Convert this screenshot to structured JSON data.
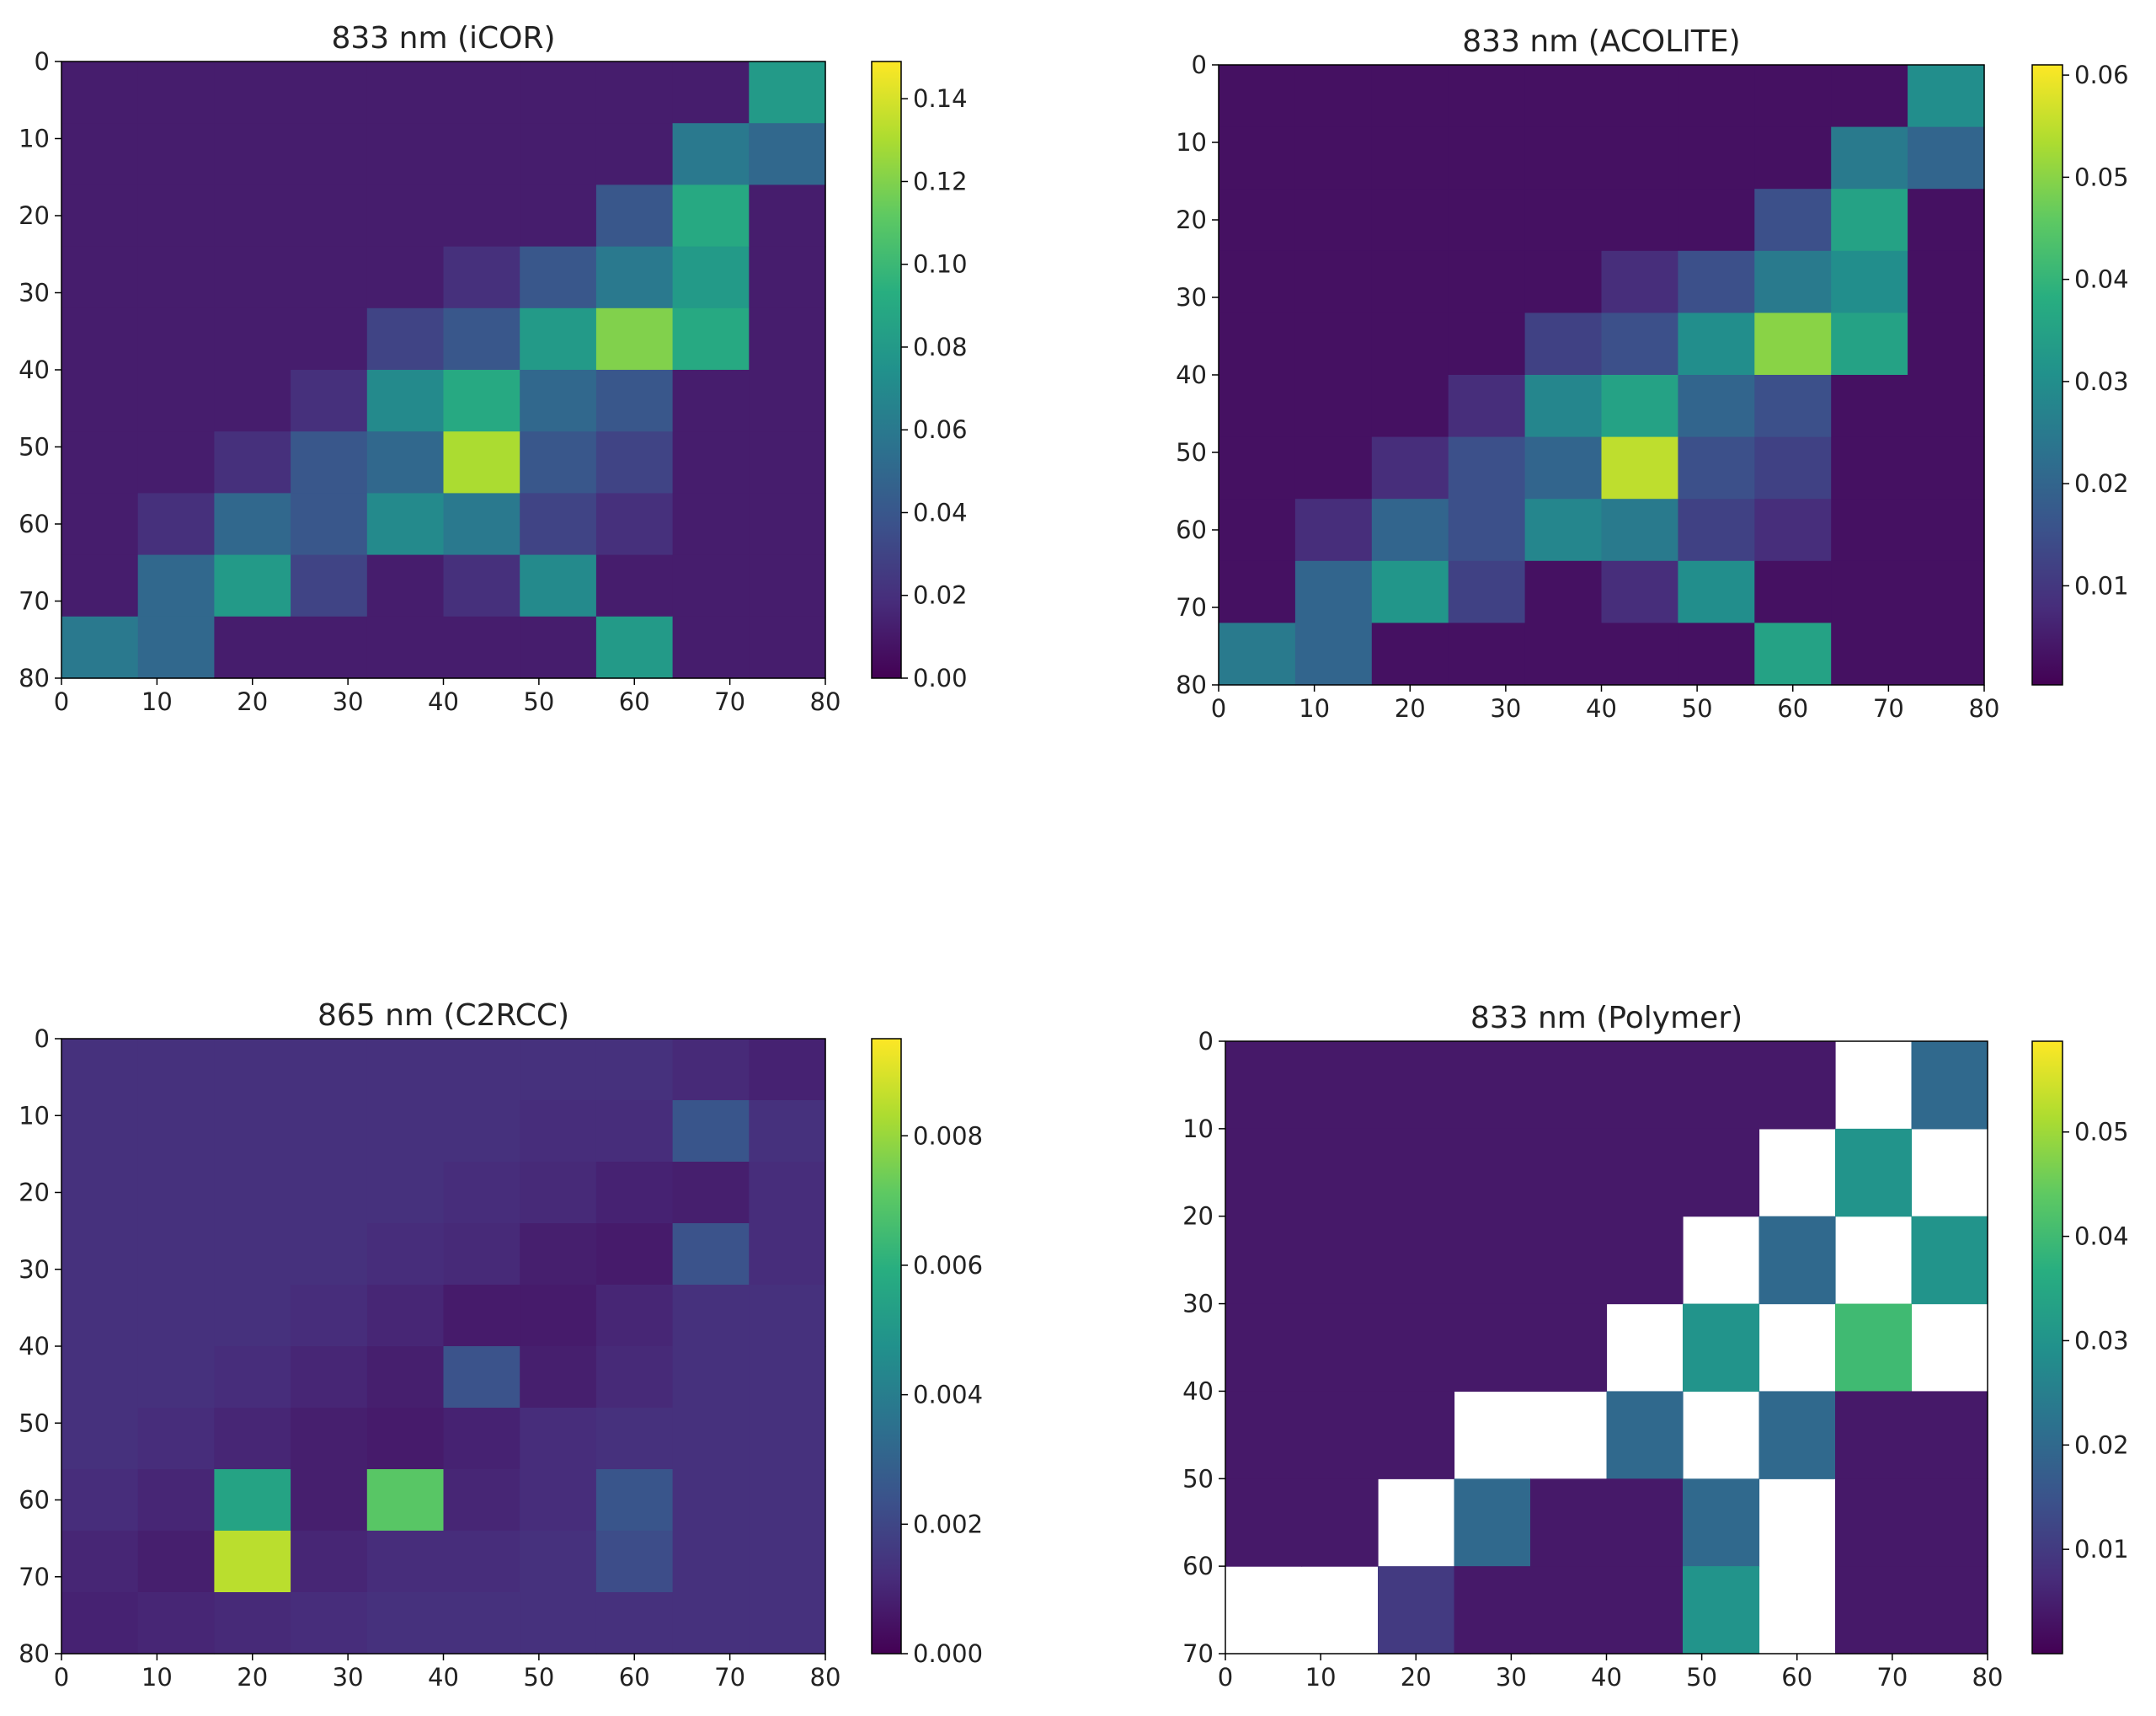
{
  "chart_data": [
    {
      "type": "heatmap",
      "title": "833 nm (iCOR)",
      "colormap": "viridis",
      "xlim": [
        0,
        80
      ],
      "ylim": [
        80,
        0
      ],
      "xticks": [
        0,
        10,
        20,
        30,
        40,
        50,
        60,
        70,
        80
      ],
      "yticks": [
        0,
        10,
        20,
        30,
        40,
        50,
        60,
        70,
        80
      ],
      "clim": [
        0,
        0.149
      ],
      "cticks": [
        {
          "value": 0,
          "label": "0.00"
        },
        0.02,
        0.04,
        0.06,
        0.08,
        {
          "value": 0.1,
          "label": "0.10"
        },
        0.12,
        0.14
      ],
      "z": [
        [
          0.012,
          0.012,
          0.012,
          0.012,
          0.012,
          0.012,
          0.012,
          0.012,
          0.012,
          0.08
        ],
        [
          0.012,
          0.012,
          0.012,
          0.012,
          0.012,
          0.012,
          0.012,
          0.012,
          0.06,
          0.05
        ],
        [
          0.012,
          0.012,
          0.012,
          0.012,
          0.012,
          0.012,
          0.012,
          0.04,
          0.09,
          0.012
        ],
        [
          0.012,
          0.012,
          0.012,
          0.012,
          0.012,
          0.02,
          0.04,
          0.06,
          0.08,
          0.012
        ],
        [
          0.012,
          0.012,
          0.012,
          0.012,
          0.03,
          0.04,
          0.08,
          0.12,
          0.09,
          0.012
        ],
        [
          0.012,
          0.012,
          0.012,
          0.02,
          0.07,
          0.09,
          0.05,
          0.04,
          0.012,
          0.012
        ],
        [
          0.012,
          0.012,
          0.02,
          0.04,
          0.05,
          0.13,
          0.04,
          0.03,
          0.012,
          0.012
        ],
        [
          0.012,
          0.02,
          0.05,
          0.04,
          0.07,
          0.06,
          0.03,
          0.02,
          0.012,
          0.012
        ],
        [
          0.012,
          0.05,
          0.08,
          0.03,
          0.012,
          0.02,
          0.07,
          0.012,
          0.012,
          0.012
        ],
        [
          0.06,
          0.05,
          0.012,
          0.012,
          0.012,
          0.012,
          0.012,
          0.08,
          0.012,
          0.012
        ]
      ]
    },
    {
      "type": "heatmap",
      "title": "833 nm (ACOLITE)",
      "colormap": "viridis",
      "xlim": [
        0,
        80
      ],
      "ylim": [
        80,
        0
      ],
      "xticks": [
        0,
        10,
        20,
        30,
        40,
        50,
        60,
        70,
        80
      ],
      "yticks": [
        0,
        10,
        20,
        30,
        40,
        50,
        60,
        70,
        80
      ],
      "clim": [
        0.0003,
        0.061
      ],
      "cticks": [
        0.01,
        0.02,
        0.03,
        0.04,
        0.05,
        0.06
      ],
      "z": [
        [
          0.003,
          0.003,
          0.003,
          0.003,
          0.003,
          0.003,
          0.003,
          0.003,
          0.003,
          0.03
        ],
        [
          0.003,
          0.003,
          0.003,
          0.003,
          0.003,
          0.003,
          0.003,
          0.003,
          0.025,
          0.02
        ],
        [
          0.003,
          0.003,
          0.003,
          0.003,
          0.003,
          0.003,
          0.003,
          0.015,
          0.035,
          0.003
        ],
        [
          0.003,
          0.003,
          0.003,
          0.003,
          0.003,
          0.008,
          0.015,
          0.025,
          0.03,
          0.003
        ],
        [
          0.003,
          0.003,
          0.003,
          0.003,
          0.012,
          0.015,
          0.03,
          0.05,
          0.035,
          0.003
        ],
        [
          0.003,
          0.003,
          0.003,
          0.008,
          0.028,
          0.035,
          0.02,
          0.015,
          0.003,
          0.003
        ],
        [
          0.003,
          0.003,
          0.008,
          0.015,
          0.02,
          0.055,
          0.015,
          0.012,
          0.003,
          0.003
        ],
        [
          0.003,
          0.008,
          0.02,
          0.015,
          0.028,
          0.025,
          0.012,
          0.008,
          0.003,
          0.003
        ],
        [
          0.003,
          0.02,
          0.032,
          0.012,
          0.003,
          0.008,
          0.03,
          0.003,
          0.003,
          0.003
        ],
        [
          0.025,
          0.02,
          0.003,
          0.003,
          0.003,
          0.003,
          0.003,
          0.035,
          0.003,
          0.003
        ]
      ]
    },
    {
      "type": "heatmap",
      "title": "865 nm (C2RCC)",
      "colormap": "viridis",
      "xlim": [
        0,
        80
      ],
      "ylim": [
        80,
        0
      ],
      "xticks": [
        0,
        10,
        20,
        30,
        40,
        50,
        60,
        70,
        80
      ],
      "yticks": [
        0,
        10,
        20,
        30,
        40,
        50,
        60,
        70,
        80
      ],
      "clim": [
        0,
        0.0095
      ],
      "cticks": [
        {
          "value": 0,
          "label": "0.000"
        },
        {
          "value": 0.002,
          "label": "0.002"
        },
        {
          "value": 0.004,
          "label": "0.004"
        },
        {
          "value": 0.006,
          "label": "0.006"
        },
        {
          "value": 0.008,
          "label": "0.008"
        }
      ],
      "z": [
        [
          0.0013,
          0.0013,
          0.0013,
          0.0013,
          0.0013,
          0.0013,
          0.0013,
          0.0013,
          0.0011,
          0.0009
        ],
        [
          0.0013,
          0.0013,
          0.0013,
          0.0013,
          0.0013,
          0.0013,
          0.0012,
          0.0012,
          0.0025,
          0.0013
        ],
        [
          0.0013,
          0.0013,
          0.0013,
          0.0013,
          0.0013,
          0.0012,
          0.0011,
          0.0009,
          0.0008,
          0.0012
        ],
        [
          0.0013,
          0.0013,
          0.0013,
          0.0013,
          0.0012,
          0.0011,
          0.0008,
          0.0007,
          0.0024,
          0.0012
        ],
        [
          0.0013,
          0.0013,
          0.0013,
          0.0012,
          0.001,
          0.0007,
          0.0007,
          0.001,
          0.0013,
          0.0013
        ],
        [
          0.0013,
          0.0013,
          0.0012,
          0.001,
          0.0008,
          0.0024,
          0.0008,
          0.0011,
          0.0013,
          0.0013
        ],
        [
          0.0013,
          0.0012,
          0.001,
          0.0008,
          0.0007,
          0.0009,
          0.0012,
          0.0013,
          0.0013,
          0.0013
        ],
        [
          0.0012,
          0.001,
          0.0055,
          0.0008,
          0.007,
          0.001,
          0.0012,
          0.0025,
          0.0013,
          0.0013
        ],
        [
          0.001,
          0.0008,
          0.0085,
          0.001,
          0.0012,
          0.0012,
          0.0013,
          0.0022,
          0.0013,
          0.0013
        ],
        [
          0.0009,
          0.001,
          0.0011,
          0.0012,
          0.0013,
          0.0013,
          0.0013,
          0.0013,
          0.0013,
          0.0013
        ]
      ]
    },
    {
      "type": "heatmap",
      "title": "833 nm (Polymer)",
      "colormap": "viridis",
      "xlim": [
        0,
        80
      ],
      "ylim": [
        70,
        0
      ],
      "xticks": [
        0,
        10,
        20,
        30,
        40,
        50,
        60,
        70,
        80
      ],
      "yticks": [
        0,
        10,
        20,
        30,
        40,
        50,
        60,
        70
      ],
      "clim": [
        0,
        0.0587
      ],
      "cticks": [
        0.01,
        0.02,
        0.03,
        0.04,
        0.05
      ],
      "z": [
        [
          0.004,
          0.004,
          0.004,
          0.004,
          0.004,
          0.004,
          0.004,
          0.004,
          null,
          0.02
        ],
        [
          0.004,
          0.004,
          0.004,
          0.004,
          0.004,
          0.004,
          0.004,
          null,
          0.03,
          null
        ],
        [
          0.004,
          0.004,
          0.004,
          0.004,
          0.004,
          0.004,
          null,
          0.02,
          null,
          0.03
        ],
        [
          0.004,
          0.004,
          0.004,
          0.004,
          0.004,
          null,
          0.03,
          null,
          0.04,
          null
        ],
        [
          0.004,
          0.004,
          0.004,
          null,
          null,
          0.02,
          null,
          0.02,
          0.004,
          0.004
        ],
        [
          0.004,
          0.004,
          null,
          0.02,
          0.004,
          0.004,
          0.02,
          null,
          0.004,
          0.004
        ],
        [
          null,
          null,
          0.01,
          0.004,
          0.004,
          0.004,
          0.03,
          null,
          0.004,
          0.004
        ]
      ]
    }
  ]
}
